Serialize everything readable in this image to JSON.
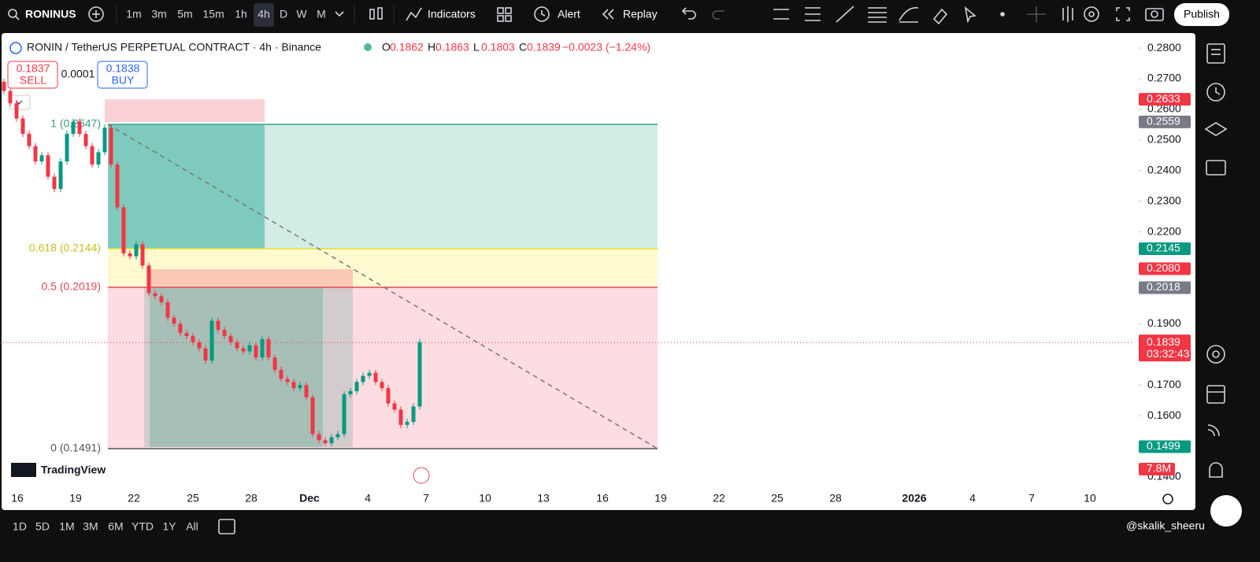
{
  "toolbar": {
    "symbol": "RONINUS",
    "intervals": [
      "1m",
      "3m",
      "5m",
      "15m",
      "1h",
      "4h",
      "D",
      "W",
      "M"
    ],
    "indicators": "Indicators",
    "alert": "Alert",
    "replay": "Replay",
    "publish": "Publish"
  },
  "legend": {
    "title": "RONIN / TetherUS PERPETUAL CONTRACT · 4h · Binance",
    "ohlc": [
      {
        "key": "O",
        "value": "0.1862"
      },
      {
        "key": "H",
        "value": "0.1863"
      },
      {
        "key": "L",
        "value": "0.1803"
      },
      {
        "key": "C",
        "value": "0.1839"
      }
    ],
    "change": "−0.0023 (−1.24%)"
  },
  "trade": {
    "sell_price": "0.1837",
    "sell": "SELL",
    "spread": "0.0001",
    "buy_price": "0.1838",
    "buy": "BUY"
  },
  "fib": [
    "1 (0.2547)",
    "0.618 (0.2144)",
    "0.5 (0.2019)",
    "0 (0.1491)"
  ],
  "price_axis": {
    "ylim": [
      0.1364,
      0.2849
    ],
    "ticks": [
      {
        "value": 0.28,
        "label": "0.2800"
      },
      {
        "value": 0.27,
        "label": "0.2700"
      },
      {
        "value": 0.26,
        "label": "0.2600"
      },
      {
        "value": 0.25,
        "label": "0.2500"
      },
      {
        "value": 0.24,
        "label": "0.2400"
      },
      {
        "value": 0.23,
        "label": "0.2300"
      },
      {
        "value": 0.22,
        "label": "0.2200"
      },
      {
        "value": 0.19,
        "label": "0.1900"
      },
      {
        "value": 0.17,
        "label": "0.1700"
      },
      {
        "value": 0.16,
        "label": "0.1600"
      },
      {
        "value": 0.14,
        "label": "0.1400"
      }
    ],
    "badges": [
      {
        "value": 0.2633,
        "label": "0.2633",
        "color": "#f23645"
      },
      {
        "value": 0.2559,
        "label": "0.2559",
        "color": "#787b86"
      },
      {
        "value": 0.2145,
        "label": "0.2145",
        "color": "#089981"
      },
      {
        "value": 0.208,
        "label": "0.2080",
        "color": "#f23645"
      },
      {
        "value": 0.2018,
        "label": "0.2018",
        "color": "#787b86"
      },
      {
        "value": 0.1499,
        "label": "0.1499",
        "color": "#089981"
      }
    ],
    "last_price": {
      "value": 0.1839,
      "label": "0.1839",
      "countdown": "03:32:43",
      "color": "#f23645"
    },
    "volume_badge": "7.8M"
  },
  "time_axis": [
    "16",
    "19",
    "22",
    "25",
    "28",
    "Dec",
    "4",
    "7",
    "10",
    "13",
    "16",
    "19",
    "22",
    "25",
    "28",
    "2026",
    "4",
    "7",
    "10"
  ],
  "candles": {
    "up_color": "#089981",
    "down_color": "#f23645",
    "open": 0.269,
    "closes": [
      0.266,
      0.262,
      0.257,
      0.252,
      0.248,
      0.243,
      0.245,
      0.238,
      0.234,
      0.243,
      0.252,
      0.256,
      0.252,
      0.248,
      0.242,
      0.246,
      0.254,
      0.242,
      0.228,
      0.213,
      0.212,
      0.216,
      0.209,
      0.2,
      0.199,
      0.197,
      0.192,
      0.19,
      0.187,
      0.186,
      0.184,
      0.182,
      0.178,
      0.191,
      0.188,
      0.186,
      0.184,
      0.182,
      0.181,
      0.183,
      0.179,
      0.185,
      0.179,
      0.175,
      0.172,
      0.171,
      0.169,
      0.17,
      0.166,
      0.154,
      0.152,
      0.151,
      0.153,
      0.154,
      0.167,
      0.168,
      0.171,
      0.173,
      0.174,
      0.171,
      0.169,
      0.164,
      0.162,
      0.157,
      0.158,
      0.163,
      0.184
    ]
  },
  "watermark": "TradingView",
  "bottom": {
    "ranges": [
      "1D",
      "5D",
      "1M",
      "3M",
      "6M",
      "YTD",
      "1Y",
      "All"
    ],
    "user": "@skalik_sheeru"
  }
}
